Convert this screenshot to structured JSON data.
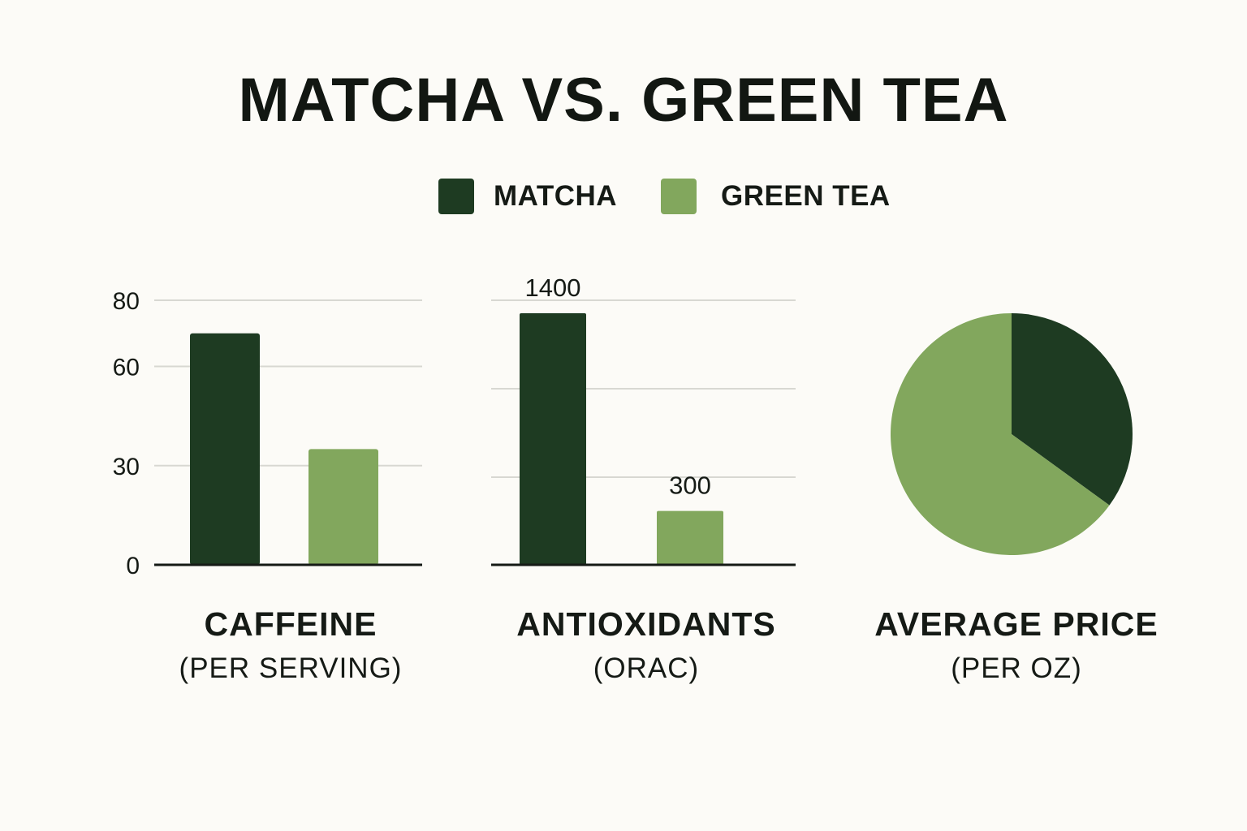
{
  "title": "MATCHA VS. GREEN TEA",
  "legend": [
    {
      "label": "MATCHA",
      "color": "#1e3b22"
    },
    {
      "label": "GREEN TEA",
      "color": "#82a75d"
    }
  ],
  "chart_data": [
    {
      "type": "bar",
      "title": "CAFFEINE",
      "subtitle": "(PER SERVING)",
      "categories": [
        "MATCHA",
        "GREEN TEA"
      ],
      "values": [
        70,
        35
      ],
      "yticks": [
        0,
        30,
        60,
        80
      ],
      "ylim": [
        0,
        80
      ],
      "grid": true
    },
    {
      "type": "bar",
      "title": "ANTIOXIDANTS",
      "subtitle": "(ORAC)",
      "categories": [
        "MATCHA",
        "GREEN TEA"
      ],
      "values": [
        1400,
        300
      ],
      "data_labels": [
        "1400",
        "300"
      ],
      "grid": true
    },
    {
      "type": "pie",
      "title": "AVERAGE PRICE",
      "subtitle": "(PER OZ)",
      "categories": [
        "MATCHA",
        "GREEN TEA"
      ],
      "values": [
        35,
        65
      ]
    }
  ]
}
